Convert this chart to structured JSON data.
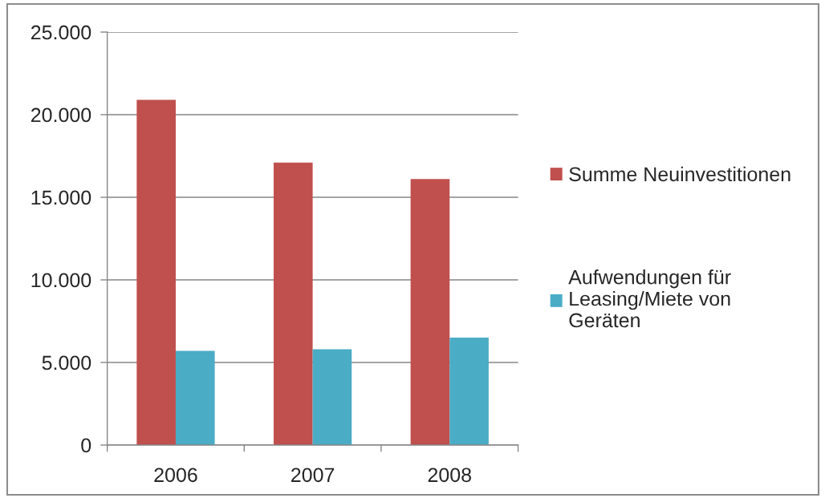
{
  "chart_data": {
    "type": "bar",
    "categories": [
      "2006",
      "2007",
      "2008"
    ],
    "series": [
      {
        "name": "Summe Neuinvestitionen",
        "color": "#c0504d",
        "values": [
          20900,
          17100,
          16100
        ]
      },
      {
        "name": "Aufwendungen für\nLeasing/Miete von\nGeräten",
        "color": "#4bacc6",
        "values": [
          5700,
          5800,
          6500
        ]
      }
    ],
    "ylim": [
      0,
      25000
    ],
    "yticks": [
      0,
      {
        "value": 5000,
        "label": "5.000"
      },
      {
        "value": 10000,
        "label": "10.000"
      },
      {
        "value": 15000,
        "label": "15.000"
      },
      {
        "value": 20000,
        "label": "20.000"
      },
      {
        "value": 25000,
        "label": "25.000"
      }
    ],
    "grid": "y",
    "legend": "right"
  }
}
